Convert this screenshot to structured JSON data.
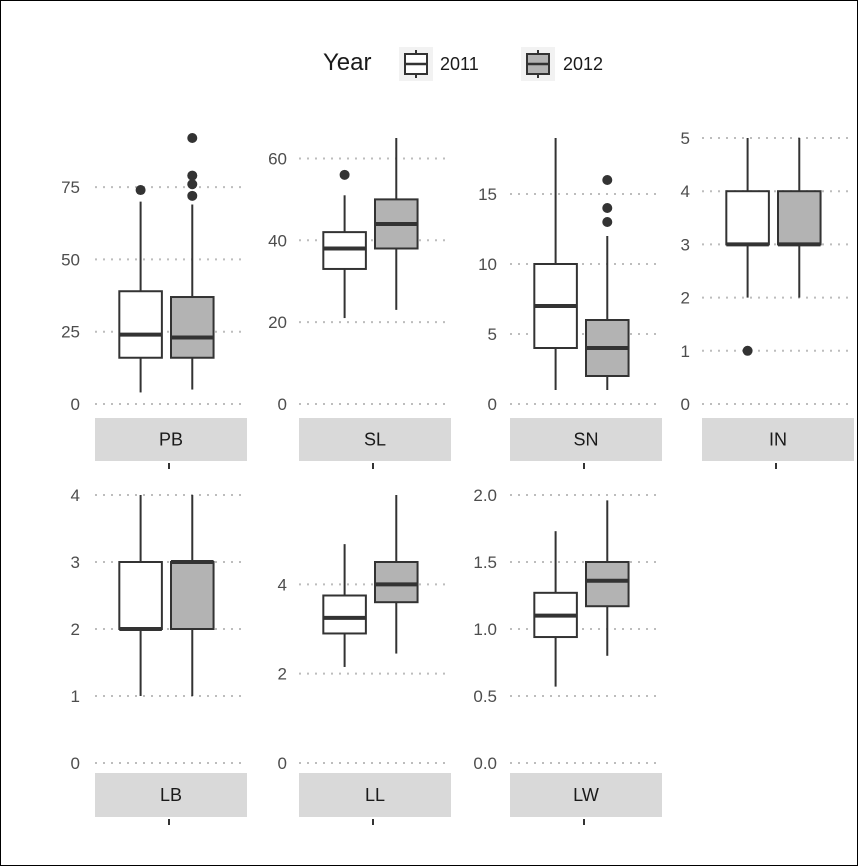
{
  "legend": {
    "title": "Year",
    "entries": [
      {
        "label": "2011",
        "fill": "#ffffff"
      },
      {
        "label": "2012",
        "fill": "#b3b3b3"
      }
    ],
    "position": "top-center"
  },
  "colors": {
    "strip": "#d9d9d9",
    "grid": "#bdbdbd",
    "box_stroke": "#333333",
    "tick_text": "#4d4d4d"
  },
  "chart_data": {
    "type": "boxplot",
    "facet_layout": "4 columns x 2 rows, independent y scales",
    "grid": "dotted horizontal major gridlines",
    "groups": [
      "2011",
      "2012"
    ],
    "panels": [
      {
        "label": "PB",
        "ylim": [
          0,
          92
        ],
        "yticks": [
          0,
          25,
          50,
          75
        ],
        "ytick_labels": [
          "0",
          "25",
          "50",
          "75"
        ],
        "boxes": [
          {
            "group": "2011",
            "min": 4,
            "q1": 16,
            "median": 24,
            "q3": 39,
            "max": 70,
            "outliers": [
              74
            ]
          },
          {
            "group": "2012",
            "min": 5,
            "q1": 16,
            "median": 23,
            "q3": 37,
            "max": 69,
            "outliers": [
              72,
              76,
              79,
              92
            ]
          }
        ]
      },
      {
        "label": "SL",
        "ylim": [
          0,
          65
        ],
        "yticks": [
          0,
          20,
          40,
          60
        ],
        "ytick_labels": [
          "0",
          "20",
          "40",
          "60"
        ],
        "boxes": [
          {
            "group": "2011",
            "min": 21,
            "q1": 33,
            "median": 38,
            "q3": 42,
            "max": 51,
            "outliers": [
              56
            ]
          },
          {
            "group": "2012",
            "min": 23,
            "q1": 38,
            "median": 44,
            "q3": 50,
            "max": 65,
            "outliers": []
          }
        ]
      },
      {
        "label": "SN",
        "ylim": [
          0,
          19
        ],
        "yticks": [
          0,
          5,
          10,
          15
        ],
        "ytick_labels": [
          "0",
          "5",
          "10",
          "15"
        ],
        "boxes": [
          {
            "group": "2011",
            "min": 1,
            "q1": 4,
            "median": 7,
            "q3": 10,
            "max": 19,
            "outliers": []
          },
          {
            "group": "2012",
            "min": 1,
            "q1": 2,
            "median": 4,
            "q3": 6,
            "max": 12,
            "outliers": [
              13,
              14,
              16
            ]
          }
        ]
      },
      {
        "label": "IN",
        "ylim": [
          0,
          5
        ],
        "yticks": [
          0,
          1,
          2,
          3,
          4,
          5
        ],
        "ytick_labels": [
          "0",
          "1",
          "2",
          "3",
          "4",
          "5"
        ],
        "boxes": [
          {
            "group": "2011",
            "min": 2,
            "q1": 3,
            "median": 3,
            "q3": 4,
            "max": 5,
            "outliers": [
              1
            ]
          },
          {
            "group": "2012",
            "min": 2,
            "q1": 3,
            "median": 3,
            "q3": 4,
            "max": 5,
            "outliers": []
          }
        ]
      },
      {
        "label": "LB",
        "ylim": [
          0,
          4
        ],
        "yticks": [
          0,
          1,
          2,
          3,
          4
        ],
        "ytick_labels": [
          "0",
          "1",
          "2",
          "3",
          "4"
        ],
        "boxes": [
          {
            "group": "2011",
            "min": 1,
            "q1": 2,
            "median": 2,
            "q3": 3,
            "max": 4,
            "outliers": []
          },
          {
            "group": "2012",
            "min": 1,
            "q1": 2,
            "median": 3,
            "q3": 3,
            "max": 4,
            "outliers": []
          }
        ]
      },
      {
        "label": "LL",
        "ylim": [
          0,
          6
        ],
        "yticks": [
          0,
          2,
          4
        ],
        "ytick_labels": [
          "0",
          "2",
          "4"
        ],
        "boxes": [
          {
            "group": "2011",
            "min": 2.15,
            "q1": 2.9,
            "median": 3.25,
            "q3": 3.75,
            "max": 4.9,
            "outliers": []
          },
          {
            "group": "2012",
            "min": 2.45,
            "q1": 3.6,
            "median": 4.0,
            "q3": 4.5,
            "max": 6.0,
            "outliers": []
          }
        ]
      },
      {
        "label": "LW",
        "ylim": [
          0,
          2
        ],
        "yticks": [
          0,
          0.5,
          1,
          1.5,
          2
        ],
        "ytick_labels": [
          "0.0",
          "0.5",
          "1.0",
          "1.5",
          "2.0"
        ],
        "boxes": [
          {
            "group": "2011",
            "min": 0.57,
            "q1": 0.94,
            "median": 1.1,
            "q3": 1.27,
            "max": 1.73,
            "outliers": []
          },
          {
            "group": "2012",
            "min": 0.8,
            "q1": 1.17,
            "median": 1.36,
            "q3": 1.5,
            "max": 1.96,
            "outliers": []
          }
        ]
      }
    ]
  }
}
